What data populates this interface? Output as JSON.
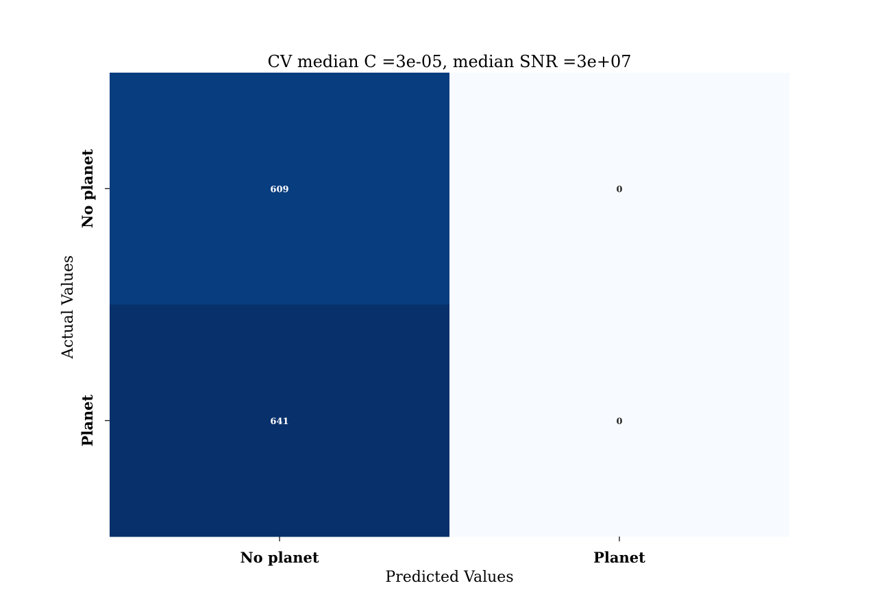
{
  "chart_data": {
    "type": "heatmap",
    "title": "CV median C =3e-05, median SNR =3e+07",
    "xlabel": "Predicted Values",
    "ylabel": "Actual Values",
    "x_categories": [
      "No planet",
      "Planet"
    ],
    "y_categories": [
      "No planet",
      "Planet"
    ],
    "values": [
      [
        609,
        0
      ],
      [
        641,
        0
      ]
    ],
    "colormap": "Blues",
    "colorbar": false,
    "vmin": 0,
    "vmax": 641,
    "colors": {
      "low": "#f7fbff",
      "high": "#08306b",
      "text_dark_cell": "#ffffff",
      "text_light_cell": "#262626"
    }
  }
}
